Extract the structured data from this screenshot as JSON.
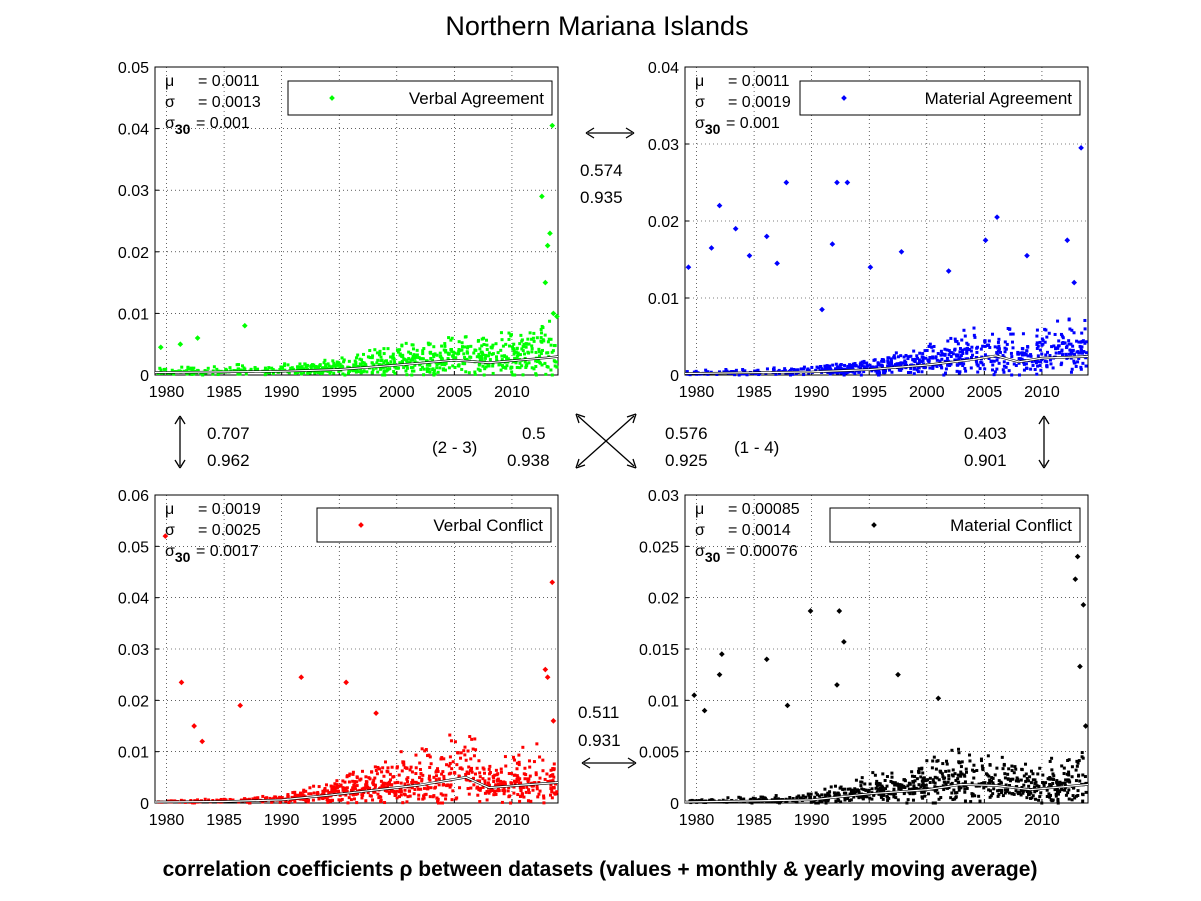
{
  "title": "Northern Mariana Islands",
  "caption": "correlation coefficients ρ between datasets (values + monthly & yearly moving average)",
  "colors": {
    "verbal_agreement": "#00ff00",
    "material_agreement": "#0000ff",
    "verbal_conflict": "#ff0000",
    "material_conflict": "#000000"
  },
  "stat_symbols": [
    "μ",
    "σ",
    "σ30"
  ],
  "chart_data": [
    {
      "type": "scatter",
      "legend": "Verbal Agreement",
      "legend_position": "top-right",
      "color": "#00ff00",
      "xlim": [
        1979,
        2014
      ],
      "ylim": [
        0,
        0.05
      ],
      "xticks": [
        "1980",
        "1985",
        "1990",
        "1995",
        "2000",
        "2005",
        "2010"
      ],
      "yticks": [
        "0",
        "0.01",
        "0.02",
        "0.03",
        "0.04",
        "0.05"
      ],
      "grid": true,
      "stats": {
        "mu": "= 0.0011",
        "sigma": "= 0.0013",
        "sigma30": "= 0.001"
      },
      "outliers": [
        [
          1979.5,
          0.0045
        ],
        [
          1981.2,
          0.005
        ],
        [
          1982.7,
          0.006
        ],
        [
          1986.8,
          0.008
        ],
        [
          2012.6,
          0.029
        ],
        [
          2012.9,
          0.015
        ],
        [
          2013.1,
          0.021
        ],
        [
          2013.3,
          0.023
        ],
        [
          2013.5,
          0.0405
        ],
        [
          2013.6,
          0.01
        ],
        [
          2013.9,
          0.0095
        ]
      ],
      "trend": [
        [
          1979,
          0.0004
        ],
        [
          1985,
          0.0005
        ],
        [
          1990,
          0.0006
        ],
        [
          1995,
          0.0009
        ],
        [
          2000,
          0.0016
        ],
        [
          2005,
          0.0024
        ],
        [
          2008,
          0.002
        ],
        [
          2013,
          0.0028
        ],
        [
          2014,
          0.003
        ]
      ]
    },
    {
      "type": "scatter",
      "legend": "Material Agreement",
      "legend_position": "top-right",
      "color": "#0000ff",
      "xlim": [
        1979,
        2014
      ],
      "ylim": [
        0,
        0.04
      ],
      "xticks": [
        "1980",
        "1985",
        "1990",
        "1995",
        "2000",
        "2005",
        "2010"
      ],
      "yticks": [
        "0",
        "0.01",
        "0.02",
        "0.03",
        "0.04"
      ],
      "grid": true,
      "stats": {
        "mu": "= 0.0011",
        "sigma": "= 0.0019",
        "sigma30": "= 0.001"
      },
      "outliers": [
        [
          1979.3,
          0.014
        ],
        [
          1981.3,
          0.0165
        ],
        [
          1982.0,
          0.022
        ],
        [
          1983.4,
          0.019
        ],
        [
          1984.6,
          0.0155
        ],
        [
          1986.1,
          0.018
        ],
        [
          1987.0,
          0.0145
        ],
        [
          1987.8,
          0.025
        ],
        [
          1990.9,
          0.0085
        ],
        [
          1991.8,
          0.017
        ],
        [
          1992.2,
          0.025
        ],
        [
          1993.1,
          0.025
        ],
        [
          1995.1,
          0.014
        ],
        [
          1997.8,
          0.016
        ],
        [
          2001.9,
          0.0135
        ],
        [
          2005.1,
          0.0175
        ],
        [
          2006.1,
          0.0205
        ],
        [
          2008.7,
          0.0155
        ],
        [
          2012.2,
          0.0175
        ],
        [
          2012.8,
          0.012
        ],
        [
          2013.4,
          0.0295
        ]
      ],
      "trend": [
        [
          1979,
          0.0002
        ],
        [
          1985,
          0.0003
        ],
        [
          1990,
          0.0004
        ],
        [
          1995,
          0.0007
        ],
        [
          2000,
          0.0013
        ],
        [
          2004,
          0.002
        ],
        [
          2006,
          0.0025
        ],
        [
          2008,
          0.0017
        ],
        [
          2010,
          0.0022
        ],
        [
          2014,
          0.0024
        ]
      ]
    },
    {
      "type": "scatter",
      "legend": "Verbal Conflict",
      "legend_position": "top-right",
      "color": "#ff0000",
      "xlim": [
        1979,
        2014
      ],
      "ylim": [
        0,
        0.06
      ],
      "xticks": [
        "1980",
        "1985",
        "1990",
        "1995",
        "2000",
        "2005",
        "2010"
      ],
      "yticks": [
        "0",
        "0.01",
        "0.02",
        "0.03",
        "0.04",
        "0.05",
        "0.06"
      ],
      "grid": true,
      "stats": {
        "mu": "= 0.0019",
        "sigma": "= 0.0025",
        "sigma30": "= 0.0017"
      },
      "outliers": [
        [
          1979.9,
          0.052
        ],
        [
          1981.3,
          0.0235
        ],
        [
          1982.4,
          0.015
        ],
        [
          1983.1,
          0.012
        ],
        [
          1986.4,
          0.019
        ],
        [
          1991.7,
          0.0245
        ],
        [
          1995.6,
          0.0235
        ],
        [
          1998.2,
          0.0175
        ],
        [
          2012.9,
          0.026
        ],
        [
          2013.1,
          0.0245
        ],
        [
          2013.5,
          0.043
        ],
        [
          2013.6,
          0.016
        ]
      ],
      "trend": [
        [
          1979,
          0.0002
        ],
        [
          1985,
          0.0003
        ],
        [
          1990,
          0.0006
        ],
        [
          1994,
          0.0015
        ],
        [
          1998,
          0.0025
        ],
        [
          2002,
          0.0035
        ],
        [
          2006,
          0.005
        ],
        [
          2008,
          0.003
        ],
        [
          2011,
          0.0035
        ],
        [
          2014,
          0.004
        ]
      ]
    },
    {
      "type": "scatter",
      "legend": "Material Conflict",
      "legend_position": "top-right",
      "color": "#000000",
      "xlim": [
        1979,
        2014
      ],
      "ylim": [
        0,
        0.03
      ],
      "xticks": [
        "1980",
        "1985",
        "1990",
        "1995",
        "2000",
        "2005",
        "2010"
      ],
      "yticks": [
        "0",
        "0.005",
        "0.01",
        "0.015",
        "0.02",
        "0.025",
        "0.03"
      ],
      "grid": true,
      "stats": {
        "mu": "= 0.00085",
        "sigma": "= 0.0014",
        "sigma30": "= 0.00076"
      },
      "outliers": [
        [
          1979.8,
          0.0105
        ],
        [
          1980.7,
          0.009
        ],
        [
          1982.2,
          0.0145
        ],
        [
          1982.0,
          0.0125
        ],
        [
          1986.1,
          0.014
        ],
        [
          1987.9,
          0.0095
        ],
        [
          1989.9,
          0.0187
        ],
        [
          1992.4,
          0.0187
        ],
        [
          1992.8,
          0.0157
        ],
        [
          1992.2,
          0.0115
        ],
        [
          1997.5,
          0.0125
        ],
        [
          2001.0,
          0.0102
        ],
        [
          2012.9,
          0.0218
        ],
        [
          2013.1,
          0.024
        ],
        [
          2013.3,
          0.0133
        ],
        [
          2013.6,
          0.0193
        ],
        [
          2013.8,
          0.0075
        ]
      ],
      "trend": [
        [
          1979,
          0.0001
        ],
        [
          1985,
          0.0002
        ],
        [
          1990,
          0.0003
        ],
        [
          1995,
          0.0009
        ],
        [
          2000,
          0.0013
        ],
        [
          2003,
          0.0018
        ],
        [
          2006,
          0.0017
        ],
        [
          2009,
          0.0013
        ],
        [
          2012,
          0.0016
        ],
        [
          2014,
          0.0018
        ]
      ]
    }
  ],
  "correlations": {
    "top": {
      "r1": "0.574",
      "r2": "0.935"
    },
    "left": {
      "r1": "0.707",
      "r2": "0.962"
    },
    "right": {
      "r1": "0.403",
      "r2": "0.901"
    },
    "bottom": {
      "r1": "0.511",
      "r2": "0.931"
    },
    "diag_2_3": {
      "label": "(2 - 3)",
      "r1": "0.5",
      "r2": "0.938"
    },
    "diag_1_4": {
      "label": "(1 - 4)",
      "r1": "0.576",
      "r2": "0.925"
    }
  }
}
